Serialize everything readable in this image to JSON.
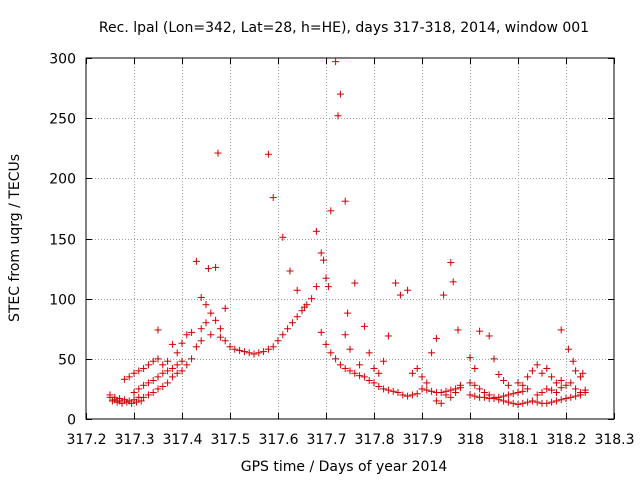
{
  "chart_data": {
    "type": "scatter",
    "title": "Rec. lpal (Lon=342, Lat=28, h=HE), days 317-318, 2014, window 001",
    "xlabel": "GPS time / Days of year 2014",
    "ylabel": "STEC from uqrg / TECUs",
    "xlim": [
      317.2,
      318.3
    ],
    "ylim": [
      0,
      300
    ],
    "xticks": [
      317.2,
      317.3,
      317.4,
      317.5,
      317.6,
      317.7,
      317.8,
      317.9,
      318.0,
      318.1,
      318.2,
      318.3
    ],
    "xtick_labels": [
      "317.2",
      "317.3",
      "317.4",
      "317.5",
      "317.6",
      "317.7",
      "317.8",
      "317.9",
      "318",
      "318.1",
      "318.2",
      "318.3"
    ],
    "yticks": [
      0,
      50,
      100,
      150,
      200,
      250,
      300
    ],
    "ytick_labels": [
      "0",
      "50",
      "100",
      "150",
      "200",
      "250",
      "300"
    ],
    "marker": "+",
    "color": "#cc0000",
    "grid": true,
    "series": [
      {
        "points": [
          [
            317.25,
            18
          ],
          [
            317.255,
            15
          ],
          [
            317.26,
            16
          ],
          [
            317.265,
            14
          ],
          [
            317.27,
            15
          ],
          [
            317.275,
            13
          ],
          [
            317.28,
            16
          ],
          [
            317.285,
            14
          ],
          [
            317.29,
            15
          ],
          [
            317.295,
            13
          ],
          [
            317.3,
            16
          ],
          [
            317.305,
            14
          ],
          [
            317.31,
            18
          ],
          [
            317.315,
            15
          ],
          [
            317.25,
            20
          ],
          [
            317.26,
            18
          ],
          [
            317.27,
            17
          ],
          [
            317.28,
            33
          ],
          [
            317.29,
            35
          ],
          [
            317.3,
            38
          ],
          [
            317.31,
            40
          ],
          [
            317.32,
            42
          ],
          [
            317.33,
            45
          ],
          [
            317.34,
            48
          ],
          [
            317.35,
            50
          ],
          [
            317.3,
            22
          ],
          [
            317.31,
            25
          ],
          [
            317.32,
            28
          ],
          [
            317.33,
            30
          ],
          [
            317.34,
            32
          ],
          [
            317.35,
            35
          ],
          [
            317.36,
            38
          ],
          [
            317.37,
            40
          ],
          [
            317.38,
            42
          ],
          [
            317.39,
            45
          ],
          [
            317.4,
            48
          ],
          [
            317.32,
            18
          ],
          [
            317.33,
            20
          ],
          [
            317.34,
            22
          ],
          [
            317.35,
            25
          ],
          [
            317.36,
            27
          ],
          [
            317.37,
            30
          ],
          [
            317.38,
            35
          ],
          [
            317.39,
            38
          ],
          [
            317.4,
            40
          ],
          [
            317.41,
            45
          ],
          [
            317.42,
            50
          ],
          [
            317.35,
            74
          ],
          [
            317.36,
            45
          ],
          [
            317.37,
            48
          ],
          [
            317.38,
            62
          ],
          [
            317.39,
            55
          ],
          [
            317.4,
            63
          ],
          [
            317.41,
            70
          ],
          [
            317.42,
            72
          ],
          [
            317.43,
            60
          ],
          [
            317.44,
            65
          ],
          [
            317.43,
            131
          ],
          [
            317.44,
            101
          ],
          [
            317.45,
            95
          ],
          [
            317.455,
            125
          ],
          [
            317.46,
            88
          ],
          [
            317.47,
            126
          ],
          [
            317.475,
            221
          ],
          [
            317.48,
            75
          ],
          [
            317.49,
            92
          ],
          [
            317.44,
            75
          ],
          [
            317.45,
            80
          ],
          [
            317.46,
            70
          ],
          [
            317.47,
            82
          ],
          [
            317.48,
            68
          ],
          [
            317.49,
            65
          ],
          [
            317.5,
            60
          ],
          [
            317.51,
            58
          ],
          [
            317.52,
            57
          ],
          [
            317.53,
            56
          ],
          [
            317.54,
            55
          ],
          [
            317.55,
            54
          ],
          [
            317.56,
            55
          ],
          [
            317.57,
            56
          ],
          [
            317.58,
            58
          ],
          [
            317.59,
            60
          ],
          [
            317.6,
            65
          ],
          [
            317.61,
            70
          ],
          [
            317.62,
            75
          ],
          [
            317.63,
            80
          ],
          [
            317.64,
            85
          ],
          [
            317.65,
            90
          ],
          [
            317.66,
            95
          ],
          [
            317.67,
            100
          ],
          [
            317.58,
            220
          ],
          [
            317.59,
            184
          ],
          [
            317.61,
            151
          ],
          [
            317.625,
            123
          ],
          [
            317.64,
            107
          ],
          [
            317.655,
            93
          ],
          [
            317.68,
            156
          ],
          [
            317.69,
            138
          ],
          [
            317.695,
            132
          ],
          [
            317.7,
            117
          ],
          [
            317.705,
            110
          ],
          [
            317.71,
            173
          ],
          [
            317.72,
            297
          ],
          [
            317.725,
            252
          ],
          [
            317.73,
            270
          ],
          [
            317.74,
            181
          ],
          [
            317.745,
            88
          ],
          [
            317.68,
            110
          ],
          [
            317.69,
            72
          ],
          [
            317.7,
            62
          ],
          [
            317.71,
            55
          ],
          [
            317.72,
            50
          ],
          [
            317.73,
            45
          ],
          [
            317.74,
            42
          ],
          [
            317.75,
            40
          ],
          [
            317.76,
            38
          ],
          [
            317.77,
            36
          ],
          [
            317.78,
            35
          ],
          [
            317.79,
            32
          ],
          [
            317.74,
            70
          ],
          [
            317.75,
            58
          ],
          [
            317.76,
            113
          ],
          [
            317.77,
            45
          ],
          [
            317.78,
            77
          ],
          [
            317.79,
            55
          ],
          [
            317.8,
            42
          ],
          [
            317.81,
            38
          ],
          [
            317.8,
            30
          ],
          [
            317.81,
            27
          ],
          [
            317.82,
            25
          ],
          [
            317.83,
            24
          ],
          [
            317.84,
            23
          ],
          [
            317.85,
            22
          ],
          [
            317.86,
            20
          ],
          [
            317.87,
            19
          ],
          [
            317.88,
            20
          ],
          [
            317.89,
            21
          ],
          [
            317.82,
            48
          ],
          [
            317.83,
            69
          ],
          [
            317.845,
            113
          ],
          [
            317.855,
            103
          ],
          [
            317.87,
            107
          ],
          [
            317.88,
            38
          ],
          [
            317.89,
            42
          ],
          [
            317.9,
            35
          ],
          [
            317.91,
            30
          ],
          [
            317.9,
            25
          ],
          [
            317.91,
            24
          ],
          [
            317.92,
            23
          ],
          [
            317.93,
            22
          ],
          [
            317.94,
            22
          ],
          [
            317.95,
            23
          ],
          [
            317.96,
            24
          ],
          [
            317.97,
            25
          ],
          [
            317.98,
            26
          ],
          [
            317.92,
            55
          ],
          [
            317.93,
            67
          ],
          [
            317.945,
            103
          ],
          [
            317.96,
            130
          ],
          [
            317.965,
            114
          ],
          [
            317.975,
            74
          ],
          [
            317.93,
            15
          ],
          [
            317.94,
            13
          ],
          [
            317.95,
            20
          ],
          [
            317.96,
            18
          ],
          [
            317.97,
            22
          ],
          [
            317.98,
            28
          ],
          [
            318.0,
            51
          ],
          [
            318.01,
            42
          ],
          [
            318.02,
            73
          ],
          [
            318.04,
            69
          ],
          [
            318.05,
            50
          ],
          [
            318.06,
            37
          ],
          [
            318.07,
            32
          ],
          [
            318.08,
            28
          ],
          [
            318.0,
            20
          ],
          [
            318.01,
            19
          ],
          [
            318.02,
            18
          ],
          [
            318.03,
            18
          ],
          [
            318.04,
            17
          ],
          [
            318.05,
            17
          ],
          [
            318.06,
            18
          ],
          [
            318.07,
            19
          ],
          [
            318.08,
            20
          ],
          [
            318.09,
            21
          ],
          [
            318.1,
            22
          ],
          [
            318.11,
            23
          ],
          [
            318.12,
            25
          ],
          [
            318.0,
            30
          ],
          [
            318.01,
            28
          ],
          [
            318.02,
            25
          ],
          [
            318.03,
            22
          ],
          [
            318.04,
            20
          ],
          [
            318.05,
            18
          ],
          [
            318.06,
            16
          ],
          [
            318.07,
            15
          ],
          [
            318.08,
            14
          ],
          [
            318.09,
            13
          ],
          [
            318.1,
            12
          ],
          [
            318.11,
            13
          ],
          [
            318.12,
            14
          ],
          [
            318.1,
            30
          ],
          [
            318.11,
            28
          ],
          [
            318.12,
            35
          ],
          [
            318.13,
            40
          ],
          [
            318.14,
            45
          ],
          [
            318.15,
            38
          ],
          [
            318.16,
            42
          ],
          [
            318.17,
            35
          ],
          [
            318.18,
            30
          ],
          [
            318.19,
            32
          ],
          [
            318.13,
            15
          ],
          [
            318.14,
            14
          ],
          [
            318.15,
            13
          ],
          [
            318.16,
            13
          ],
          [
            318.17,
            14
          ],
          [
            318.18,
            15
          ],
          [
            318.19,
            16
          ],
          [
            318.2,
            17
          ],
          [
            318.21,
            18
          ],
          [
            318.22,
            19
          ],
          [
            318.23,
            20
          ],
          [
            318.24,
            22
          ],
          [
            318.14,
            20
          ],
          [
            318.15,
            22
          ],
          [
            318.16,
            25
          ],
          [
            318.17,
            24
          ],
          [
            318.18,
            22
          ],
          [
            318.19,
            26
          ],
          [
            318.2,
            28
          ],
          [
            318.21,
            30
          ],
          [
            318.22,
            25
          ],
          [
            318.23,
            22
          ],
          [
            318.19,
            74
          ],
          [
            318.205,
            58
          ],
          [
            318.215,
            48
          ],
          [
            318.22,
            40
          ],
          [
            318.23,
            35
          ],
          [
            318.235,
            38
          ],
          [
            318.24,
            24
          ]
        ]
      }
    ]
  }
}
